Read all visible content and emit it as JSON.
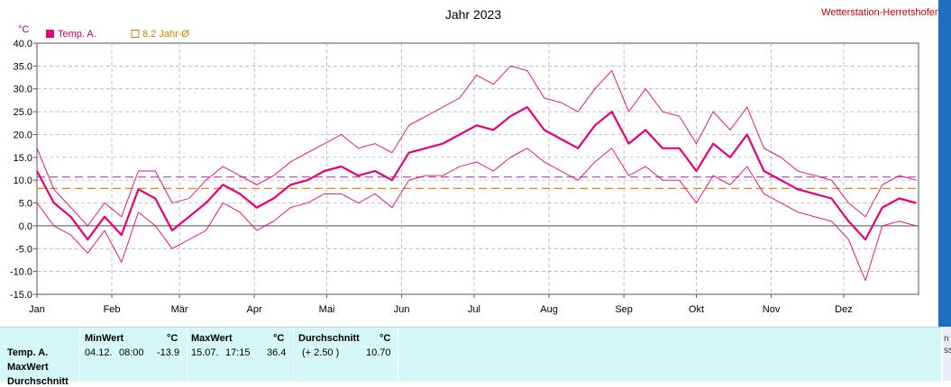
{
  "header": {
    "title": "Jahr 2023",
    "station": "Wetterstation-Herretshofen"
  },
  "legend": {
    "series_label": "Temp. A.",
    "average_label": "8.2 Jahr-Ø",
    "unit": "°C"
  },
  "colors": {
    "series": "#e8007a",
    "envelope": "#e8007a",
    "average_line": "#e07800",
    "maxmin_avg_line": "#c050c0",
    "panel_bg": "#d5f7f7"
  },
  "chart_data": {
    "type": "line",
    "ylabel": "°C",
    "ylim": [
      -15,
      40
    ],
    "y_ticks": [
      "40.0",
      "35.0",
      "30.0",
      "25.0",
      "20.0",
      "15.0",
      "10.0",
      "5.0",
      "0.0",
      "-5.0",
      "-10.0",
      "-15.0"
    ],
    "x_ticks": [
      "Jan",
      "Feb",
      "Mär",
      "Apr",
      "Mai",
      "Jun",
      "Jul",
      "Aug",
      "Sep",
      "Okt",
      "Nov",
      "Dez"
    ],
    "x_unit": "day of year",
    "xlim": [
      1,
      366
    ],
    "month_start_days": [
      1,
      32,
      60,
      91,
      121,
      152,
      182,
      213,
      244,
      274,
      305,
      335
    ],
    "reference_lines": [
      {
        "name": "8.2 Jahr-Ø",
        "value": 8.2
      },
      {
        "value": 10.7
      }
    ],
    "series": [
      {
        "name": "Temp. A.",
        "x": [
          1,
          8,
          15,
          22,
          29,
          36,
          43,
          50,
          57,
          64,
          71,
          78,
          85,
          92,
          99,
          106,
          113,
          120,
          127,
          134,
          141,
          148,
          155,
          162,
          169,
          176,
          183,
          190,
          197,
          204,
          211,
          218,
          225,
          232,
          239,
          246,
          253,
          260,
          267,
          274,
          281,
          288,
          295,
          302,
          309,
          316,
          323,
          330,
          337,
          344,
          351,
          358,
          365
        ],
        "mean": [
          12,
          5,
          2,
          -3,
          2,
          -2,
          8,
          6,
          -1,
          2,
          5,
          9,
          7,
          4,
          6,
          9,
          10,
          12,
          13,
          11,
          12,
          10,
          16,
          17,
          18,
          20,
          22,
          21,
          24,
          26,
          21,
          19,
          17,
          22,
          25,
          18,
          21,
          17,
          17,
          12,
          18,
          15,
          20,
          12,
          10,
          8,
          7,
          6,
          1,
          -3,
          4,
          6,
          5
        ],
        "max": [
          17,
          8,
          4,
          0,
          5,
          2,
          12,
          12,
          5,
          6,
          10,
          13,
          11,
          9,
          11,
          14,
          16,
          18,
          20,
          17,
          18,
          16,
          22,
          24,
          26,
          28,
          33,
          31,
          35,
          34,
          28,
          27,
          25,
          30,
          34,
          25,
          30,
          25,
          24,
          18,
          25,
          21,
          26,
          17,
          15,
          12,
          11,
          10,
          5,
          2,
          9,
          11,
          10
        ],
        "min": [
          5,
          0,
          -2,
          -6,
          -1,
          -8,
          3,
          0,
          -5,
          -3,
          -1,
          5,
          3,
          -1,
          1,
          4,
          5,
          7,
          7,
          5,
          7,
          4,
          10,
          11,
          11,
          13,
          14,
          12,
          15,
          17,
          14,
          12,
          10,
          14,
          17,
          11,
          13,
          10,
          10,
          5,
          11,
          9,
          13,
          7,
          5,
          3,
          2,
          1,
          -3,
          -12,
          0,
          1,
          0
        ]
      }
    ]
  },
  "stats": {
    "row_labels": [
      "Temp. A.",
      "MaxWert",
      "Durchschnitt"
    ],
    "min": {
      "header": "MinWert",
      "unit": "°C",
      "date": "04.12.",
      "time": "08:00",
      "value": "-13.9"
    },
    "max": {
      "header": "MaxWert",
      "unit": "°C",
      "date": "15.07.",
      "time": "17:15",
      "value": "36.4"
    },
    "avg": {
      "header": "Durchschnitt",
      "unit": "°C",
      "delta": "(+ 2.50 )",
      "value": "10.70"
    }
  },
  "side_fragments": [
    "n",
    "ss"
  ]
}
